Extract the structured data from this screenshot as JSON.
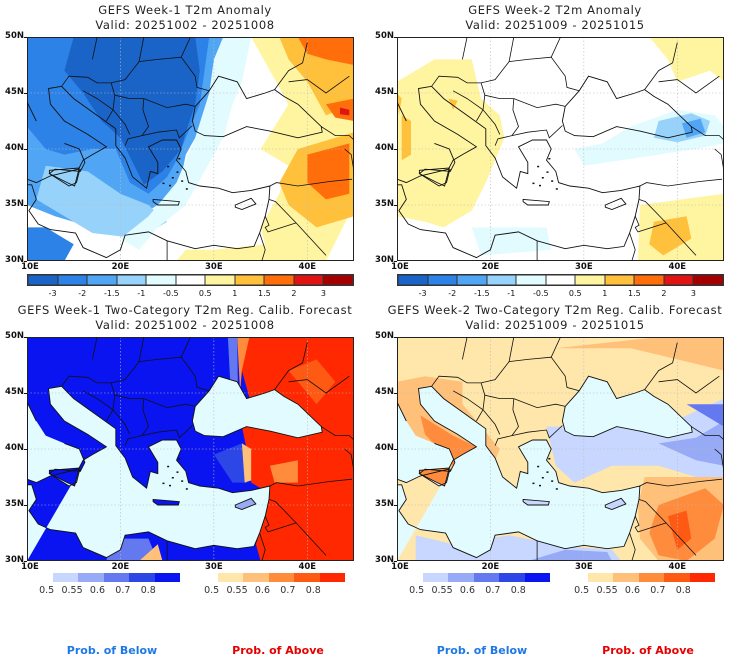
{
  "colors": {
    "anom_palette": [
      "#1a64c8",
      "#2c82e6",
      "#50a5f5",
      "#96d2fa",
      "#e1fbff",
      "#ffffff",
      "#fff4a0",
      "#ffc03c",
      "#ff6e0a",
      "#e11414",
      "#a50000"
    ],
    "below_palette": [
      "#c8d7ff",
      "#96aaf5",
      "#6478f0",
      "#2d46e6",
      "#0a14f0"
    ],
    "above_palette": [
      "#ffe6aa",
      "#ffc07a",
      "#ff8c3c",
      "#ff5a14",
      "#ff2800"
    ],
    "ocean_prob": "#e1fbff",
    "below_label": "#1e78e6",
    "above_label": "#e60000"
  },
  "chart_data": [
    {
      "type": "heatmap",
      "title": "GEFS Week-1 T2m Anomaly",
      "subtitle": "Valid: 20251002 - 20251008",
      "x_ticks": [
        "10E",
        "20E",
        "30E",
        "40E"
      ],
      "y_ticks": [
        "50N",
        "45N",
        "40N",
        "35N",
        "30N"
      ],
      "xlim": [
        10,
        45
      ],
      "ylim": [
        30,
        50
      ],
      "grid": true,
      "colorbar_ticks": [
        "-3",
        "-2",
        "-1.5",
        "-1",
        "-0.5",
        "0.5",
        "1",
        "1.5",
        "2",
        "3"
      ],
      "regions": [
        {
          "area": "Balkans / Romania / Bulgaria / Greece",
          "anomaly_class": "-2 to -3"
        },
        {
          "area": "Italy / Adriatic / Central Med",
          "anomaly_class": "-1 to -2"
        },
        {
          "area": "Ionian Sea / Libya coast",
          "anomaly_class": "-0.5 to -1.5"
        },
        {
          "area": "Black Sea / Central Turkey",
          "anomaly_class": "-0.5 to 0.5"
        },
        {
          "area": "Eastern Turkey / Caucasus / Syria",
          "anomaly_class": "1 to 2"
        },
        {
          "area": "Southern Russia",
          "anomaly_class": "1.5 to 2"
        }
      ]
    },
    {
      "type": "heatmap",
      "title": "GEFS Week-2 T2m Anomaly",
      "subtitle": "Valid: 20251009 - 20251015",
      "x_ticks": [
        "10E",
        "20E",
        "30E",
        "40E"
      ],
      "y_ticks": [
        "50N",
        "45N",
        "40N",
        "35N",
        "30N"
      ],
      "xlim": [
        10,
        45
      ],
      "ylim": [
        30,
        50
      ],
      "grid": true,
      "colorbar_ticks": [
        "-3",
        "-2",
        "-1.5",
        "-1",
        "-0.5",
        "0.5",
        "1",
        "1.5",
        "2",
        "3"
      ],
      "regions": [
        {
          "area": "Italy / Western Balkans / Tunisia",
          "anomaly_class": "0.5 to 1"
        },
        {
          "area": "Eastern Black Sea / NE Turkey",
          "anomaly_class": "-1 to -2"
        },
        {
          "area": "Central Turkey",
          "anomaly_class": "-0.5 to -1"
        },
        {
          "area": "Syria / Iraq border",
          "anomaly_class": "0.5 to 1.5"
        },
        {
          "area": "Greece / Aegean / E. Med",
          "anomaly_class": "-0.5 to 0.5"
        }
      ]
    },
    {
      "type": "heatmap",
      "title": "GEFS Week-1 Two-Category T2m Reg. Calib. Forecast",
      "subtitle": "Valid: 20251002 - 20251008",
      "x_ticks": [
        "10E",
        "20E",
        "30E",
        "40E"
      ],
      "y_ticks": [
        "50N",
        "45N",
        "40N",
        "35N",
        "30N"
      ],
      "xlim": [
        10,
        45
      ],
      "ylim": [
        30,
        50
      ],
      "grid": true,
      "below_ticks": [
        "0.5",
        "0.55",
        "0.6",
        "0.7",
        "0.8"
      ],
      "above_ticks": [
        "0.5",
        "0.55",
        "0.6",
        "0.7",
        "0.8"
      ],
      "regions": [
        {
          "area": "Europe / Balkans / W. Turkey / Libya",
          "category": "below",
          "prob": ">0.8"
        },
        {
          "area": "Eastern Turkey / Caucasus / Russia / Syria / Egypt",
          "category": "above",
          "prob": "0.7 to >0.8"
        }
      ]
    },
    {
      "type": "heatmap",
      "title": "GEFS Week-2 Two-Category T2m Reg. Calib. Forecast",
      "subtitle": "Valid: 20251009 - 20251015",
      "x_ticks": [
        "10E",
        "20E",
        "30E",
        "40E"
      ],
      "y_ticks": [
        "50N",
        "45N",
        "40N",
        "35N",
        "30N"
      ],
      "xlim": [
        10,
        45
      ],
      "ylim": [
        30,
        50
      ],
      "grid": true,
      "below_ticks": [
        "0.5",
        "0.55",
        "0.6",
        "0.7",
        "0.8"
      ],
      "above_ticks": [
        "0.5",
        "0.55",
        "0.6",
        "0.7",
        "0.8"
      ],
      "regions": [
        {
          "area": "Central Europe / Balkans",
          "category": "above",
          "prob": "0.5 to 0.55"
        },
        {
          "area": "Italy / Sicily",
          "category": "above",
          "prob": "0.6 to 0.7"
        },
        {
          "area": "Turkey / Caucasus",
          "category": "below",
          "prob": "0.5 to 0.7"
        },
        {
          "area": "Syria / Iraq",
          "category": "above",
          "prob": "0.6 to 0.8"
        },
        {
          "area": "Libya / Egypt coast",
          "category": "below",
          "prob": "0.5 to 0.6"
        }
      ]
    }
  ],
  "footer": {
    "below_label": "Prob. of Below",
    "above_label": "Prob. of Above"
  }
}
